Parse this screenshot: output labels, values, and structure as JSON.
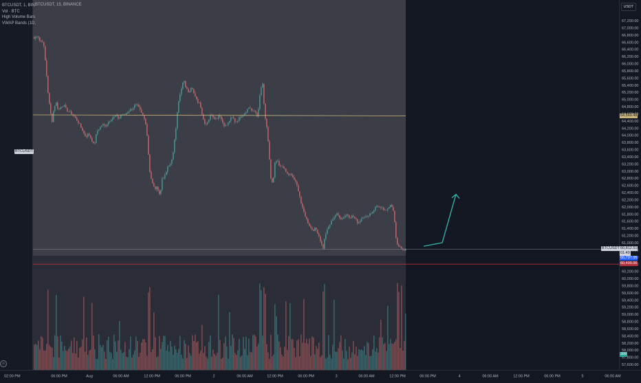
{
  "header": {
    "main": "BTCUSDT, 15, BINANCE",
    "left_lines": [
      "BTCUSDT, 1, BIN",
      "Vol · BTC",
      "High Volume Bars",
      "VWAP Bands (1D,"
    ]
  },
  "price_axis": {
    "currency": "USDT",
    "ticks": [
      "67,200.00",
      "67,000.00",
      "66,800.00",
      "66,600.00",
      "66,400.00",
      "66,200.00",
      "66,000.00",
      "65,800.00",
      "65,600.00",
      "65,400.00",
      "65,200.00",
      "65,000.00",
      "64,800.00",
      "64,600.00",
      "64,400.00",
      "64,200.00",
      "64,000.00",
      "63,800.00",
      "63,600.00",
      "63,400.00",
      "63,200.00",
      "63,000.00",
      "62,800.00",
      "62,600.00",
      "62,400.00",
      "62,200.00",
      "62,000.00",
      "61,800.00",
      "61,600.00",
      "61,400.00",
      "61,200.00",
      "61,000.00",
      "60,800.00",
      "60,600.00",
      "60,400.00",
      "60,200.00",
      "60,000.00",
      "59,800.00",
      "59,600.00",
      "59,400.00",
      "59,200.00",
      "59,000.00",
      "58,800.00",
      "58,600.00",
      "58,400.00",
      "58,200.00",
      "58,000.00",
      "57,800.00",
      "57,600.00"
    ],
    "labels": {
      "vwap": "64,569.48",
      "last": "60,812.51",
      "countdown": "01:49",
      "low_line": "60,797.05",
      "support": "60,400.00",
      "volume": "399"
    },
    "ticker_tag": "BTCUSDT",
    "ticker_tag_left": "BTCUSDT"
  },
  "time_axis": {
    "left_label": "02:00 PM",
    "ticks": [
      "06:00 PM",
      "Aug",
      "06:00 AM",
      "12:00 PM",
      "06:00 PM",
      "2",
      "06:00 AM",
      "12:00 PM",
      "06:00 PM",
      "3",
      "06:00 AM",
      "12:00 PM",
      "06:00 PM",
      "4",
      "06:00 AM",
      "12:00 PM",
      "06:00 PM",
      "5",
      "06:00 AM"
    ]
  },
  "colors": {
    "up": "#26a69a",
    "down": "#ef5350",
    "vwap": "#c9b47c",
    "support": "#b2303b",
    "arrow": "#2fb1a3",
    "highlight": "#3b3d47"
  },
  "chart_data": {
    "type": "candlestick",
    "symbol": "BTCUSDT",
    "interval": "15",
    "exchange": "BINANCE",
    "ylim": [
      57600,
      67200
    ],
    "vwap": 64569.48,
    "last_price": 60812.51,
    "support_level": 60400.0,
    "projection_arrow": [
      [
        616,
        60900
      ],
      [
        643,
        61000
      ],
      [
        663,
        62350
      ]
    ],
    "close_path": [
      [
        49,
        66700
      ],
      [
        54,
        66800
      ],
      [
        58,
        66600
      ],
      [
        62,
        66650
      ],
      [
        66,
        65900
      ],
      [
        69,
        65200
      ],
      [
        72,
        64700
      ],
      [
        75,
        64400
      ],
      [
        78,
        64800
      ],
      [
        81,
        64900
      ],
      [
        84,
        64700
      ],
      [
        88,
        64800
      ],
      [
        92,
        64850
      ],
      [
        96,
        64700
      ],
      [
        100,
        64650
      ],
      [
        104,
        64600
      ],
      [
        108,
        64500
      ],
      [
        112,
        64400
      ],
      [
        116,
        64250
      ],
      [
        120,
        64100
      ],
      [
        124,
        63950
      ],
      [
        128,
        64050
      ],
      [
        132,
        63900
      ],
      [
        136,
        63700
      ],
      [
        140,
        64100
      ],
      [
        144,
        64200
      ],
      [
        148,
        64300
      ],
      [
        152,
        64250
      ],
      [
        156,
        64350
      ],
      [
        160,
        64450
      ],
      [
        164,
        64500
      ],
      [
        168,
        64550
      ],
      [
        172,
        64450
      ],
      [
        176,
        64600
      ],
      [
        180,
        64550
      ],
      [
        184,
        64650
      ],
      [
        188,
        64700
      ],
      [
        192,
        64750
      ],
      [
        196,
        64850
      ],
      [
        200,
        64800
      ],
      [
        204,
        64650
      ],
      [
        208,
        64500
      ],
      [
        212,
        64300
      ],
      [
        214,
        63700
      ],
      [
        217,
        63000
      ],
      [
        220,
        62700
      ],
      [
        224,
        62500
      ],
      [
        228,
        62550
      ],
      [
        232,
        62300
      ],
      [
        235,
        62800
      ],
      [
        239,
        62850
      ],
      [
        243,
        63100
      ],
      [
        247,
        63200
      ],
      [
        251,
        63500
      ],
      [
        255,
        64200
      ],
      [
        258,
        64900
      ],
      [
        262,
        65200
      ],
      [
        266,
        65550
      ],
      [
        270,
        65300
      ],
      [
        274,
        65200
      ],
      [
        278,
        65400
      ],
      [
        282,
        65100
      ],
      [
        286,
        64950
      ],
      [
        290,
        64900
      ],
      [
        294,
        64500
      ],
      [
        298,
        64300
      ],
      [
        302,
        64400
      ],
      [
        306,
        64600
      ],
      [
        310,
        64500
      ],
      [
        314,
        64450
      ],
      [
        318,
        64600
      ],
      [
        322,
        64400
      ],
      [
        326,
        64250
      ],
      [
        330,
        64300
      ],
      [
        334,
        64450
      ],
      [
        338,
        64500
      ],
      [
        342,
        64350
      ],
      [
        346,
        64450
      ],
      [
        350,
        64550
      ],
      [
        354,
        64600
      ],
      [
        358,
        64700
      ],
      [
        362,
        64800
      ],
      [
        366,
        64650
      ],
      [
        370,
        64700
      ],
      [
        374,
        64500
      ],
      [
        378,
        65300
      ],
      [
        381,
        65400
      ],
      [
        384,
        64600
      ],
      [
        387,
        64200
      ],
      [
        390,
        63600
      ],
      [
        393,
        62800
      ],
      [
        396,
        62600
      ],
      [
        399,
        63200
      ],
      [
        402,
        63300
      ],
      [
        406,
        63100
      ],
      [
        410,
        63150
      ],
      [
        414,
        63000
      ],
      [
        418,
        62900
      ],
      [
        422,
        62900
      ],
      [
        426,
        62800
      ],
      [
        430,
        62650
      ],
      [
        434,
        62400
      ],
      [
        438,
        62000
      ],
      [
        442,
        61800
      ],
      [
        446,
        61600
      ],
      [
        450,
        61450
      ],
      [
        454,
        61350
      ],
      [
        458,
        61400
      ],
      [
        462,
        61250
      ],
      [
        466,
        61000
      ],
      [
        469,
        60850
      ],
      [
        472,
        61200
      ],
      [
        476,
        61400
      ],
      [
        480,
        61550
      ],
      [
        484,
        61700
      ],
      [
        488,
        61800
      ],
      [
        492,
        61750
      ],
      [
        496,
        61650
      ],
      [
        500,
        61750
      ],
      [
        504,
        61800
      ],
      [
        508,
        61700
      ],
      [
        512,
        61750
      ],
      [
        516,
        61650
      ],
      [
        520,
        61550
      ],
      [
        524,
        61650
      ],
      [
        528,
        61750
      ],
      [
        532,
        61700
      ],
      [
        536,
        61800
      ],
      [
        540,
        61850
      ],
      [
        544,
        61950
      ],
      [
        548,
        62050
      ],
      [
        552,
        61950
      ],
      [
        556,
        61950
      ],
      [
        560,
        61850
      ],
      [
        564,
        62000
      ],
      [
        568,
        62100
      ],
      [
        572,
        61800
      ],
      [
        575,
        61100
      ],
      [
        578,
        60900
      ],
      [
        582,
        60900
      ],
      [
        586,
        60750
      ],
      [
        589,
        60812
      ]
    ]
  }
}
